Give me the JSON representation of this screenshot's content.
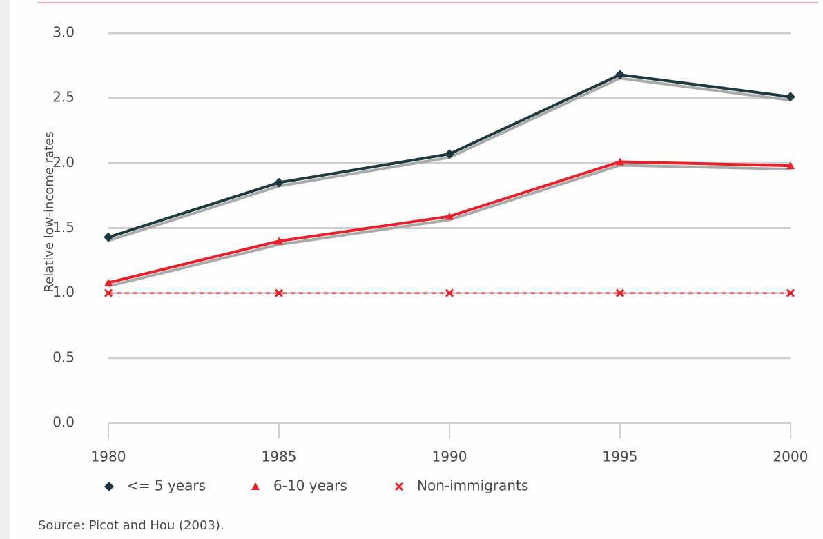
{
  "chart_data": {
    "type": "line",
    "x": [
      1980,
      1985,
      1990,
      1995,
      2000
    ],
    "xlim": [
      1980,
      2000
    ],
    "xticks": [
      1980,
      1985,
      1990,
      1995,
      2000
    ],
    "ylim": [
      0,
      3
    ],
    "yticks": [
      {
        "value": 0,
        "label": "0.0"
      },
      0.5,
      {
        "value": 1,
        "label": "1.0"
      },
      1.5,
      {
        "value": 2,
        "label": "2.0"
      },
      2.5,
      {
        "value": 3,
        "label": "3.0"
      }
    ],
    "ylabel": "Relative low-income rates",
    "grid": true,
    "series": [
      {
        "name": "<= 5 years",
        "color": "#1d3a40",
        "marker": "diamond",
        "values": [
          1.43,
          1.85,
          2.07,
          2.68,
          2.51
        ]
      },
      {
        "name": "6-10 years",
        "color": "#e8202a",
        "marker": "triangle",
        "values": [
          1.08,
          1.4,
          1.59,
          2.01,
          1.98
        ]
      },
      {
        "name": "Non-immigrants",
        "color": "#e8202a",
        "marker": "cross",
        "dashed": true,
        "values": [
          1.0,
          1.0,
          1.0,
          1.0,
          1.0
        ]
      }
    ],
    "source": "Source: Picot and Hou (2003)."
  }
}
